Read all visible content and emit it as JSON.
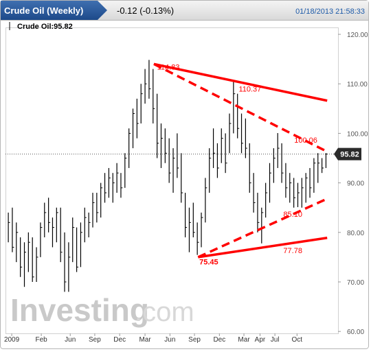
{
  "chart_data": {
    "type": "ohlc",
    "title": "Crude Oil (Weekly)",
    "change": "-0.12 (-0.13%)",
    "timestamp": "01/18/2013 21:58:33",
    "legend_text": "Crude Oil:95.82",
    "watermark": {
      "brand": "Investing",
      "suffix": ".com"
    },
    "last": 95.82,
    "color": "#000000",
    "line_color": "#ff0000",
    "high": [
      84,
      85,
      82,
      79,
      78,
      80,
      79,
      77,
      82,
      86,
      87,
      83,
      85,
      85,
      80,
      78,
      83,
      81,
      82,
      85,
      84,
      88,
      88,
      90,
      92,
      93,
      92,
      94,
      92,
      96,
      101,
      105,
      107,
      110,
      113,
      114.83,
      113,
      108,
      102,
      101,
      99,
      97,
      100,
      96,
      88,
      85,
      86,
      82,
      84,
      91,
      97,
      101,
      98,
      101,
      100,
      104,
      110.37,
      108,
      104,
      103,
      98,
      92,
      88,
      85,
      90,
      94,
      97,
      100.06,
      98,
      94,
      92,
      91,
      90,
      91,
      92,
      93,
      95,
      96,
      95,
      96
    ],
    "low": [
      78,
      76,
      74,
      71,
      69,
      72,
      70,
      70,
      75,
      79,
      80,
      77,
      78,
      74,
      68,
      68,
      74,
      72,
      73,
      78,
      79,
      81,
      82,
      83,
      86,
      87,
      86,
      88,
      87,
      89,
      93,
      97,
      99,
      102,
      106,
      107,
      102,
      95,
      93,
      94,
      90,
      88,
      91,
      86,
      79,
      76,
      79,
      75.45,
      77,
      82,
      88,
      93,
      91,
      94,
      92,
      96,
      100,
      99,
      96,
      95,
      88,
      84,
      80,
      77.78,
      83,
      86,
      90,
      93,
      90,
      87,
      86,
      85,
      85.1,
      85,
      86,
      87,
      88,
      90,
      92,
      93
    ],
    "close": [
      82,
      77,
      80,
      73,
      76,
      78,
      71,
      75,
      81,
      84,
      82,
      81,
      84,
      76,
      70,
      75,
      81,
      73,
      80,
      83,
      82,
      86,
      84,
      89,
      88,
      91,
      90,
      92,
      89,
      95,
      100,
      104,
      102,
      108,
      110,
      109,
      105,
      98,
      99,
      96,
      92,
      95,
      93,
      88,
      81,
      82,
      80,
      78,
      83,
      89,
      95,
      96,
      93,
      99,
      94,
      102,
      108,
      101,
      98,
      97,
      90,
      86,
      82,
      84,
      88,
      92,
      95,
      97,
      92,
      89,
      90,
      87,
      88,
      89,
      91,
      89,
      94,
      94,
      93,
      95.82
    ],
    "xlim": [
      -0.7,
      82.0
    ],
    "xticks": [
      {
        "value": 0.85,
        "label": "2009"
      },
      {
        "value": 8.2,
        "label": "Feb"
      },
      {
        "value": 15.4,
        "label": "Jun"
      },
      {
        "value": 21.5,
        "label": "Sep"
      },
      {
        "value": 27.7,
        "label": "Dec"
      },
      {
        "value": 34.0,
        "label": "Mar"
      },
      {
        "value": 40.2,
        "label": "Jun"
      },
      {
        "value": 46.3,
        "label": "Sep"
      },
      {
        "value": 52.5,
        "label": "Dec"
      },
      {
        "value": 58.6,
        "label": "Mar"
      },
      {
        "value": 62.6,
        "label": "Apr"
      },
      {
        "value": 66.3,
        "label": "Jul"
      },
      {
        "value": 71.8,
        "label": "Oct"
      }
    ],
    "ylim": [
      59.61,
      121.39
    ],
    "yticks": [
      {
        "value": 60,
        "label": "60.00"
      },
      {
        "value": 70,
        "label": "70.00"
      },
      {
        "value": 80,
        "label": "80.00"
      },
      {
        "value": 90,
        "label": "90.00"
      },
      {
        "value": 100,
        "label": "100.00"
      },
      {
        "value": 110,
        "label": "110.00"
      },
      {
        "value": 120,
        "label": "120.00"
      }
    ],
    "trendlines": [
      {
        "dashed": false,
        "points": [
          [
            36.2,
            114.0
          ],
          [
            79.3,
            106.6
          ]
        ]
      },
      {
        "dashed": true,
        "points": [
          [
            36.2,
            114.0
          ],
          [
            79.3,
            96.3
          ]
        ]
      },
      {
        "dashed": true,
        "points": [
          [
            47.2,
            75.0
          ],
          [
            79.3,
            86.8
          ]
        ]
      },
      {
        "dashed": false,
        "points": [
          [
            47.2,
            75.0
          ],
          [
            79.3,
            78.9
          ]
        ]
      }
    ],
    "annotations": [
      {
        "x": 37.0,
        "value": 114.83,
        "label": "114.83",
        "bold": false
      },
      {
        "x": 57.3,
        "value": 110.37,
        "label": "110.37",
        "bold": false
      },
      {
        "x": 71.1,
        "value": 100.06,
        "label": "100.06",
        "bold": false
      },
      {
        "x": 68.4,
        "value": 85.1,
        "label": "85.10",
        "bold": false
      },
      {
        "x": 68.4,
        "value": 77.78,
        "label": "77.78",
        "bold": false
      },
      {
        "x": 47.5,
        "value": 75.45,
        "label": "75.45",
        "bold": true
      }
    ]
  }
}
